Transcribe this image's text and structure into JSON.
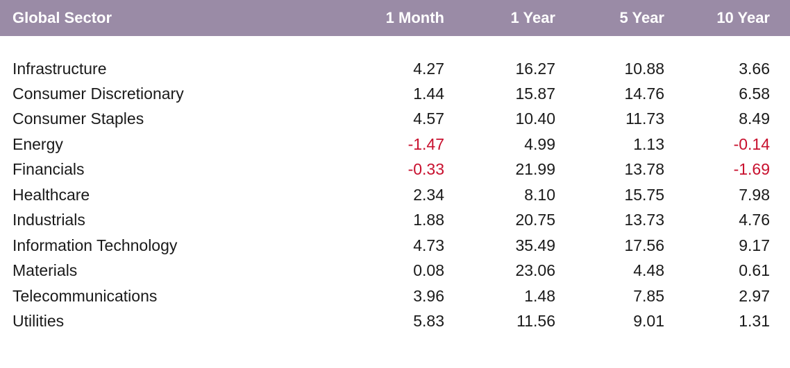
{
  "colors": {
    "header_bg": "#9a8ba6",
    "header_text": "#ffffff",
    "negative": "#c8102e",
    "text": "#1a1a1a"
  },
  "header": {
    "sector": "Global Sector",
    "m1": "1 Month",
    "y1": "1 Year",
    "y5": "5 Year",
    "y10": "10 Year"
  },
  "rows": [
    {
      "sector": "Infrastructure",
      "m1": "4.27",
      "y1": "16.27",
      "y5": "10.88",
      "y10": "3.66"
    },
    {
      "sector": "Consumer Discretionary",
      "m1": "1.44",
      "y1": "15.87",
      "y5": "14.76",
      "y10": "6.58"
    },
    {
      "sector": "Consumer Staples",
      "m1": "4.57",
      "y1": "10.40",
      "y5": "11.73",
      "y10": "8.49"
    },
    {
      "sector": "Energy",
      "m1": "-1.47",
      "y1": "4.99",
      "y5": "1.13",
      "y10": "-0.14"
    },
    {
      "sector": "Financials",
      "m1": "-0.33",
      "y1": "21.99",
      "y5": "13.78",
      "y10": "-1.69"
    },
    {
      "sector": "Healthcare",
      "m1": "2.34",
      "y1": "8.10",
      "y5": "15.75",
      "y10": "7.98"
    },
    {
      "sector": "Industrials",
      "m1": "1.88",
      "y1": "20.75",
      "y5": "13.73",
      "y10": "4.76"
    },
    {
      "sector": "Information Technology",
      "m1": "4.73",
      "y1": "35.49",
      "y5": "17.56",
      "y10": "9.17"
    },
    {
      "sector": "Materials",
      "m1": "0.08",
      "y1": "23.06",
      "y5": "4.48",
      "y10": "0.61"
    },
    {
      "sector": "Telecommunications",
      "m1": "3.96",
      "y1": "1.48",
      "y5": "7.85",
      "y10": "2.97"
    },
    {
      "sector": "Utilities",
      "m1": "5.83",
      "y1": "11.56",
      "y5": "9.01",
      "y10": "1.31"
    }
  ]
}
